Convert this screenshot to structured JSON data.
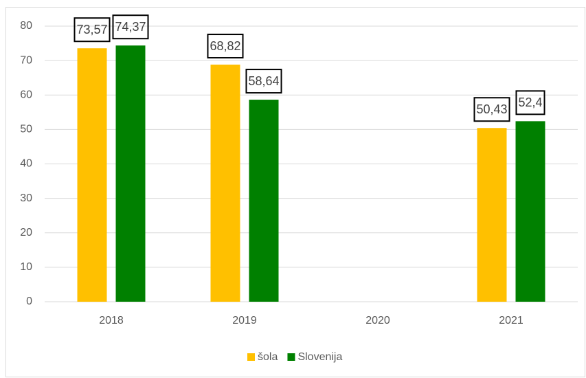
{
  "chart_data": {
    "type": "bar",
    "categories": [
      "2018",
      "2019",
      "2020",
      "2021"
    ],
    "series": [
      {
        "name": "šola",
        "color": "#ffc000",
        "values": [
          73.57,
          68.82,
          null,
          50.43
        ],
        "value_labels": [
          "73,57",
          "68,82",
          null,
          "50,43"
        ]
      },
      {
        "name": "Slovenija",
        "color": "#008000",
        "values": [
          74.37,
          58.64,
          null,
          52.4
        ],
        "value_labels": [
          "74,37",
          "58,64",
          null,
          "52,4"
        ]
      }
    ],
    "ylim": [
      0,
      80
    ],
    "yticks": [
      0,
      10,
      20,
      30,
      40,
      50,
      60,
      70,
      80
    ],
    "grid": true,
    "legend": "bottom"
  }
}
